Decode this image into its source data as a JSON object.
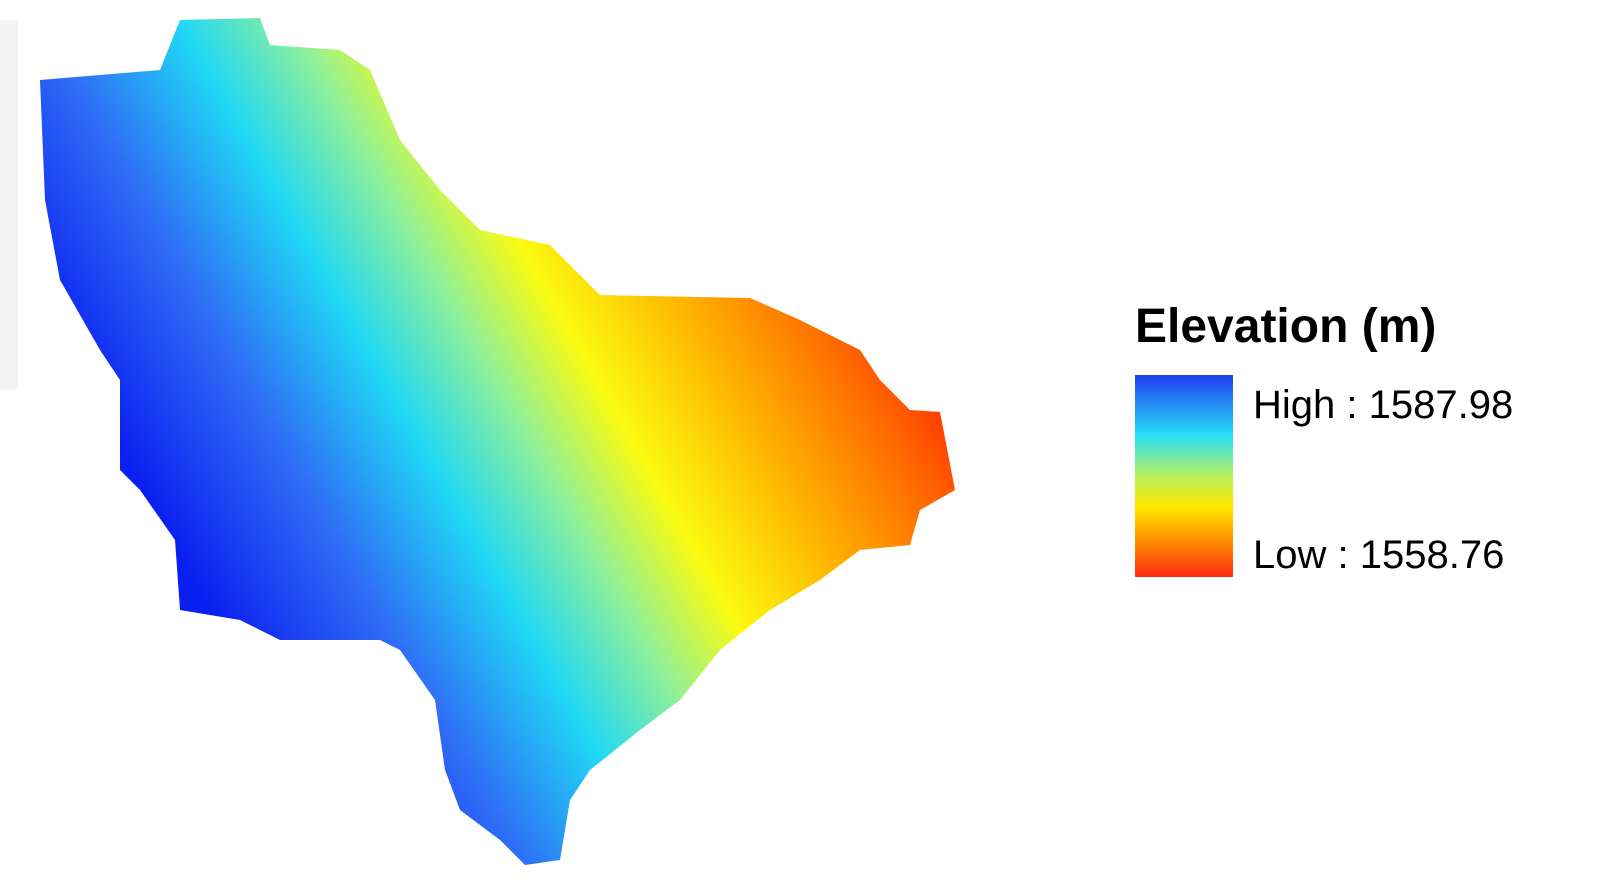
{
  "legend": {
    "title": "Elevation (m)",
    "high": "High : 1587.98",
    "low": "Low : 1558.76"
  }
}
